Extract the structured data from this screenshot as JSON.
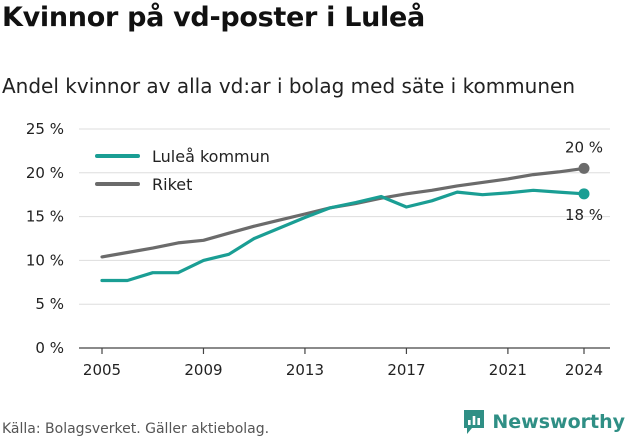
{
  "title": "Kvinnor på vd-poster i Luleå",
  "subtitle": "Andel kvinnor av alla vd:ar i bolag med säte i kommunen",
  "source": "Källa: Bolagsverket. Gäller aktiebolag.",
  "brand": "Newsworthy",
  "colors": {
    "lulea": "#1a9e94",
    "riket": "#6b6b6b",
    "brand": "#2f8f85"
  },
  "chart_data": {
    "type": "line",
    "x": [
      2005,
      2006,
      2007,
      2008,
      2009,
      2010,
      2011,
      2012,
      2013,
      2014,
      2015,
      2016,
      2017,
      2018,
      2019,
      2020,
      2021,
      2022,
      2023,
      2024
    ],
    "x_ticks": [
      "2005",
      "2009",
      "2013",
      "2017",
      "2021",
      "2024"
    ],
    "y_ticks": [
      "0 %",
      "5 %",
      "10 %",
      "15 %",
      "20 %",
      "25 %"
    ],
    "ylim": [
      0,
      25
    ],
    "grid": true,
    "legend_position": "top-left",
    "series": [
      {
        "name": "Luleå kommun",
        "color": "#1a9e94",
        "values": [
          7.7,
          7.7,
          8.6,
          8.6,
          10.0,
          10.7,
          12.5,
          13.7,
          14.9,
          16.0,
          16.6,
          17.3,
          16.1,
          16.8,
          17.8,
          17.5,
          17.7,
          18.0,
          17.8,
          17.6
        ],
        "end_label": "18 %"
      },
      {
        "name": "Riket",
        "color": "#6b6b6b",
        "values": [
          10.4,
          10.9,
          11.4,
          12.0,
          12.3,
          13.1,
          13.9,
          14.6,
          15.3,
          16.0,
          16.5,
          17.1,
          17.6,
          18.0,
          18.5,
          18.9,
          19.3,
          19.8,
          20.1,
          20.5
        ],
        "end_label": "20 %"
      }
    ]
  }
}
